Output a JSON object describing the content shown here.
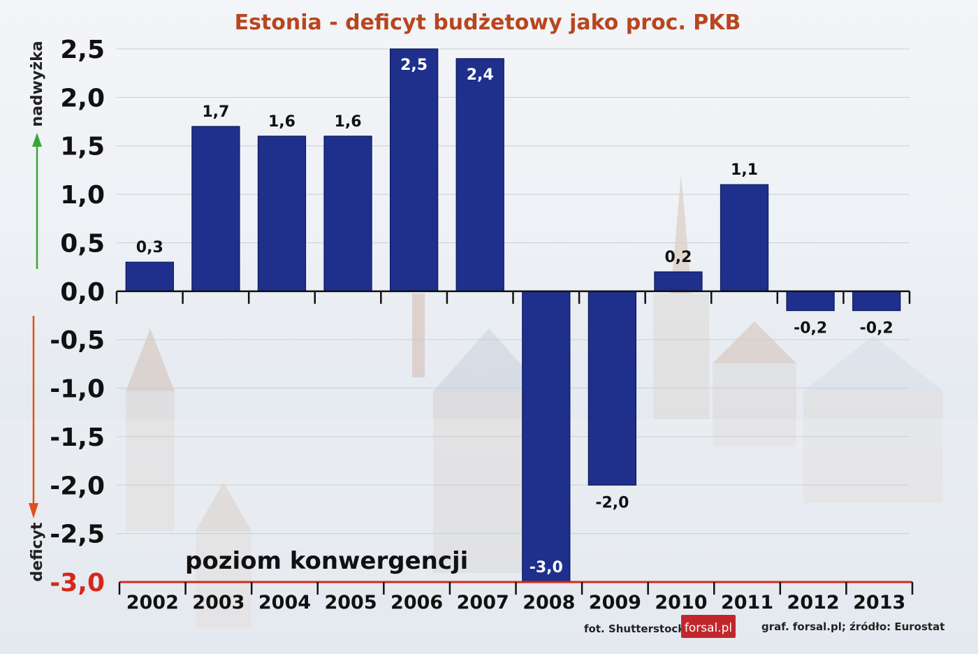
{
  "chart_data": {
    "type": "bar",
    "title": "Estonia - deficyt budżetowy jako proc. PKB",
    "categories": [
      "2002",
      "2003",
      "2004",
      "2005",
      "2006",
      "2007",
      "2008",
      "2009",
      "2010",
      "2011",
      "2012",
      "2013"
    ],
    "series": [
      {
        "values": [
          0.3,
          1.7,
          1.6,
          1.6,
          2.5,
          2.4,
          -3.0,
          -2.0,
          0.2,
          1.1,
          -0.2,
          -0.2
        ]
      }
    ],
    "data_labels": [
      "0,3",
      "1,7",
      "1,6",
      "1,6",
      "2,5",
      "2,4",
      "-3,0",
      "-2,0",
      "0,2",
      "1,1",
      "-0,2",
      "-0,2"
    ],
    "ylim": [
      -3.0,
      2.5
    ],
    "yticks": [
      2.5,
      2.0,
      1.5,
      1.0,
      0.5,
      0.0,
      -0.5,
      -1.0,
      -1.5,
      -2.0,
      -2.5,
      -3.0
    ],
    "ytick_labels": [
      "2,5",
      "2,0",
      "1,5",
      "1,0",
      "0,5",
      "0,0",
      "-0,5",
      "-1,0",
      "-1,5",
      "-2,0",
      "-2,5",
      "-3,0"
    ],
    "grid": true,
    "bar_color": "#1f2f8c",
    "upper_axis_label": "nadwyżka",
    "lower_axis_label": "deficyt",
    "upper_arrow_color": "#3aa635",
    "lower_arrow_color": "#e0501d",
    "reference_line": {
      "value": -3.0,
      "label": "poziom konwergencji",
      "color": "#d4281c"
    }
  },
  "credits": {
    "photo": "fot. Shutterstock",
    "logo": "forsal.pl",
    "logo_color": "#c0272d",
    "source": "graf. forsal.pl;  źródło: Eurostat"
  }
}
